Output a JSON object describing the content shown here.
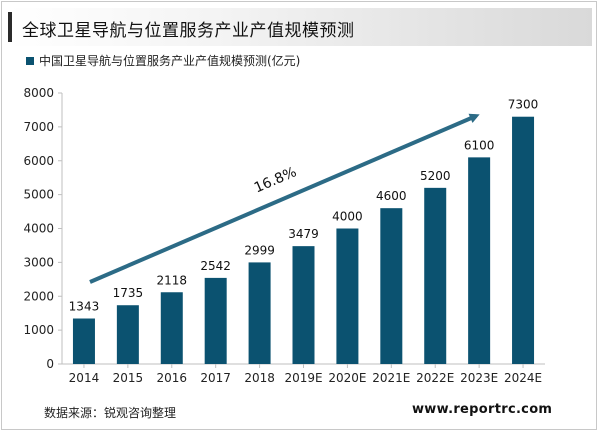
{
  "title": "全球卫星导航与位置服务产业产值规模预测",
  "legend_label": "中国卫星导航与位置服务产业产值规模预测(亿元)",
  "source": "数据来源：锐观咨询整理",
  "website": "www.reportrc.com",
  "colors": {
    "bar": "#0b5270",
    "arrow": "#2c6b86",
    "accent": "#2b2b2b"
  },
  "chart_data": {
    "type": "bar",
    "title": "中国卫星导航与位置服务产业产值规模预测(亿元)",
    "categories": [
      "2014",
      "2015",
      "2016",
      "2017",
      "2018",
      "2019E",
      "2020E",
      "2021E",
      "2022E",
      "2023E",
      "2024E"
    ],
    "series": [
      {
        "name": "中国卫星导航与位置服务产业产值规模预测(亿元)",
        "values": [
          1343,
          1735,
          2118,
          2542,
          2999,
          3479,
          4000,
          4600,
          5200,
          6100,
          7300
        ]
      }
    ],
    "ylim": [
      0,
      8000
    ],
    "yticks": [
      0,
      1000,
      2000,
      3000,
      4000,
      5000,
      6000,
      7000,
      8000
    ],
    "annotation": "16.8%",
    "grid": false,
    "legend_position": "top-left"
  }
}
